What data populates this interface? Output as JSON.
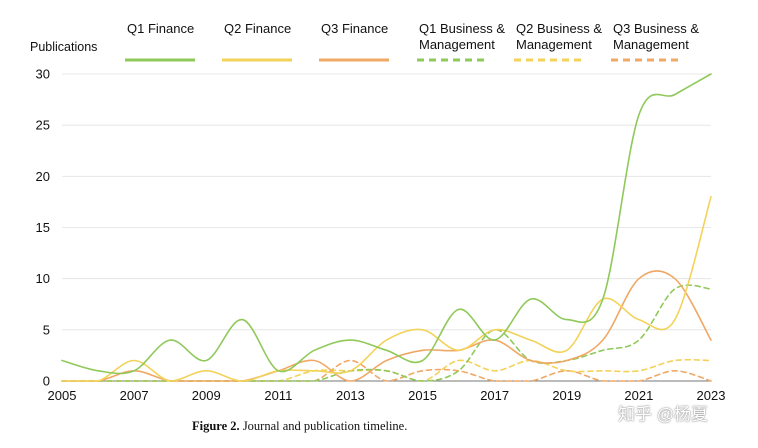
{
  "chart_data": {
    "type": "line",
    "title": "",
    "xlabel": "",
    "ylabel": "Publications",
    "xlim": [
      2005,
      2023
    ],
    "ylim": [
      0,
      30
    ],
    "x_ticks": [
      "2005",
      "2007",
      "2009",
      "2011",
      "2013",
      "2015",
      "2017",
      "2019",
      "2021",
      "2023"
    ],
    "y_ticks": [
      "0",
      "5",
      "10",
      "15",
      "20",
      "25",
      "30"
    ],
    "legend_position": "top",
    "grid": "horizontal",
    "x": [
      2005,
      2006,
      2007,
      2008,
      2009,
      2010,
      2011,
      2012,
      2013,
      2014,
      2015,
      2016,
      2017,
      2018,
      2019,
      2020,
      2021,
      2022,
      2023
    ],
    "series": [
      {
        "name": "Q1 Finance",
        "color": "#8fc95a",
        "dash": "solid",
        "values": [
          2,
          1,
          1,
          4,
          2,
          6,
          1,
          3,
          4,
          3,
          2,
          7,
          4,
          8,
          6,
          8,
          26,
          28,
          30
        ]
      },
      {
        "name": "Q2 Finance",
        "color": "#f3d25a",
        "dash": "solid",
        "values": [
          0,
          0,
          2,
          0,
          1,
          0,
          1,
          1,
          1,
          4,
          5,
          3,
          5,
          4,
          3,
          8,
          6,
          6,
          18
        ]
      },
      {
        "name": "Q3 Finance",
        "color": "#f0a866",
        "dash": "solid",
        "values": [
          0,
          0,
          1,
          0,
          0,
          0,
          1,
          2,
          0,
          2,
          3,
          3,
          4,
          2,
          2,
          4,
          10,
          10,
          4
        ]
      },
      {
        "name": "Q1 Business & Management",
        "color": "#8fc95a",
        "dash": "dashed",
        "values": [
          0,
          0,
          0,
          0,
          0,
          0,
          0,
          0,
          1,
          1,
          0,
          1,
          5,
          2,
          2,
          3,
          4,
          9,
          9
        ]
      },
      {
        "name": "Q2 Business & Management",
        "color": "#f3d25a",
        "dash": "dashed",
        "values": [
          0,
          0,
          0,
          0,
          0,
          0,
          0,
          1,
          1,
          1,
          0,
          2,
          1,
          2,
          1,
          1,
          1,
          2,
          2
        ]
      },
      {
        "name": "Q3 Business & Management",
        "color": "#f0a866",
        "dash": "dashed",
        "values": [
          0,
          0,
          0,
          0,
          0,
          0,
          0,
          0,
          2,
          0,
          1,
          1,
          0,
          0,
          1,
          0,
          0,
          1,
          0
        ]
      }
    ]
  },
  "caption": {
    "label": "Figure 2.",
    "text": " Journal and publication timeline."
  },
  "watermark": "知乎 @杨夏"
}
